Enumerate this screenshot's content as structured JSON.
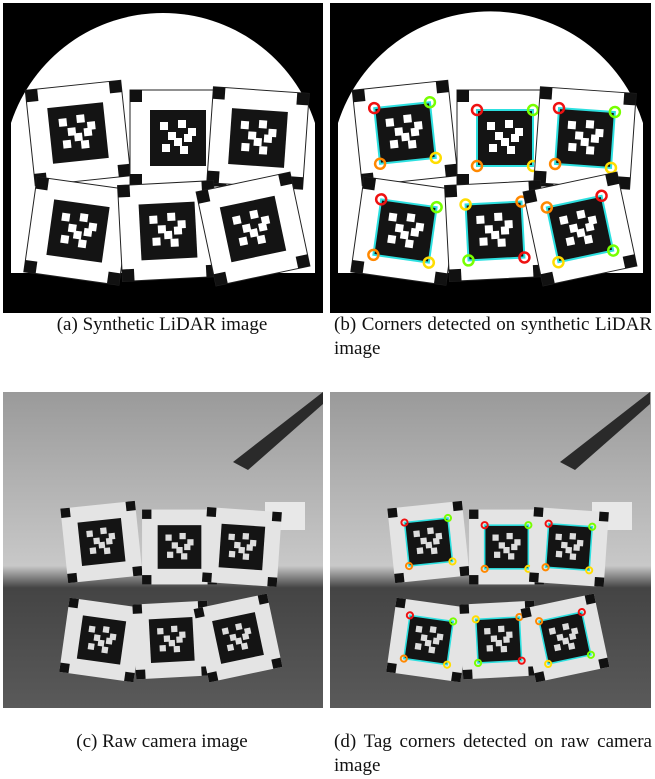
{
  "figures": [
    {
      "label": "(a)",
      "caption": "Synthetic LiDAR image"
    },
    {
      "label": "(b)",
      "caption": "Corners detected on synthetic LiDAR image"
    },
    {
      "label": "(c)",
      "caption": "Raw camera image"
    },
    {
      "label": "(d)",
      "caption": "Tag corners detected on raw camera image"
    }
  ]
}
